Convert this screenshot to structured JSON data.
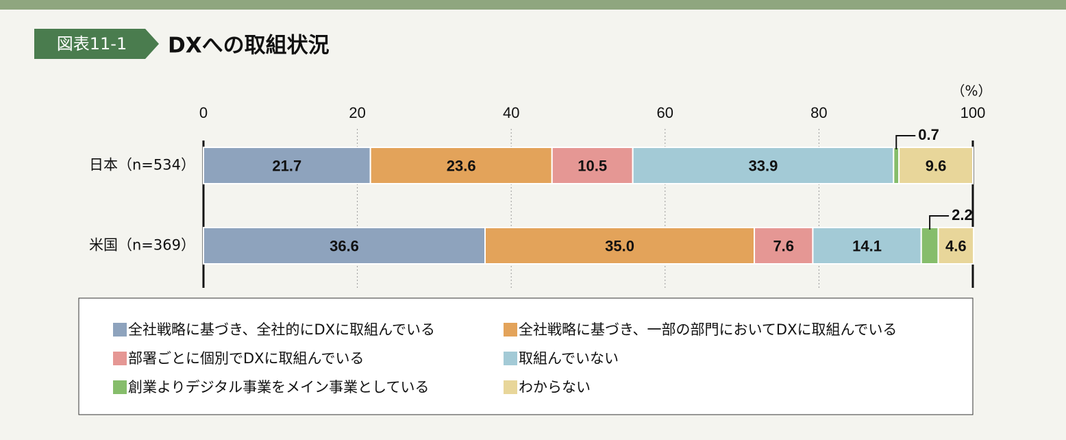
{
  "chart_data": {
    "type": "stacked_barh",
    "badge": "図表11-1",
    "title": "DXへの取組状況",
    "unit": "（%）",
    "categories": [
      "日本（n=534）",
      "米国（n=369）"
    ],
    "series": [
      {
        "name": "全社戦略に基づき、全社的にDXに取組んでいる",
        "color": "#8ea3bd",
        "values": [
          21.7,
          36.6
        ]
      },
      {
        "name": "全社戦略に基づき、一部の部門においてDXに取組んでいる",
        "color": "#e3a35a",
        "values": [
          23.6,
          35.0
        ],
        "value_labels": [
          "23.6",
          "35.0"
        ]
      },
      {
        "name": "部署ごとに個別でDXに取組んでいる",
        "color": "#e59794",
        "values": [
          10.5,
          7.6
        ]
      },
      {
        "name": "取組んでいない",
        "color": "#a3cad6",
        "values": [
          33.9,
          14.1
        ]
      },
      {
        "name": "創業よりデジタル事業をメイン事業としている",
        "color": "#86bd6b",
        "values": [
          0.7,
          2.2
        ]
      },
      {
        "name": "わからない",
        "color": "#e8d69a",
        "values": [
          9.6,
          4.6
        ]
      }
    ],
    "xlim": [
      0,
      100
    ],
    "xticks": [
      0,
      20,
      40,
      60,
      80,
      100
    ],
    "grid": true
  }
}
